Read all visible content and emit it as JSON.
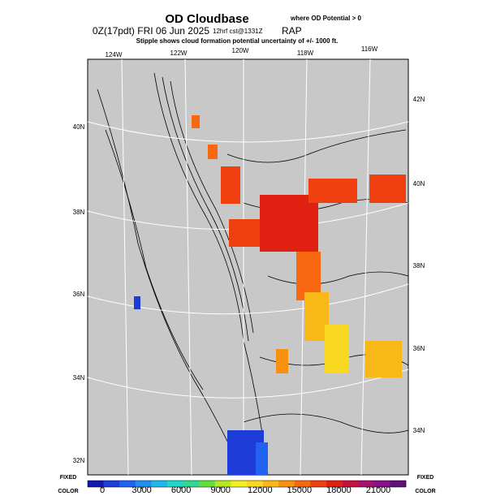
{
  "header": {
    "title": "OD Cloudbase",
    "title_note": "where OD Potential > 0",
    "valid": "0Z(17pdt) FRI 06 Jun 2025",
    "forecast": "12hrf cst@1331Z",
    "model": "RAP",
    "subtitle": "Stipple shows cloud formation potential uncertainty of +/- 1000 ft."
  },
  "map": {
    "top_labels": [
      "124W",
      "122W",
      "120W",
      "118W",
      "116W"
    ],
    "left_labels": [
      "40N",
      "38N",
      "36N",
      "34N",
      "32N"
    ],
    "right_labels": [
      "42N",
      "40N",
      "38N",
      "36N",
      "34N"
    ]
  },
  "colorbar": {
    "left_label": [
      "FIXED",
      "COLOR"
    ],
    "right_label": [
      "FIXED",
      "COLOR"
    ],
    "ticks": [
      0,
      3000,
      6000,
      9000,
      12000,
      15000,
      18000,
      21000
    ],
    "colors": [
      "#1515b0",
      "#1d3cd8",
      "#1f63f0",
      "#2090f0",
      "#20b8e8",
      "#20d8c8",
      "#30d890",
      "#60e040",
      "#b8e820",
      "#f0f020",
      "#f8d820",
      "#f8b818",
      "#f89010",
      "#f86810",
      "#f04010",
      "#e02010",
      "#c81040",
      "#a81070",
      "#881088",
      "#601078"
    ]
  }
}
